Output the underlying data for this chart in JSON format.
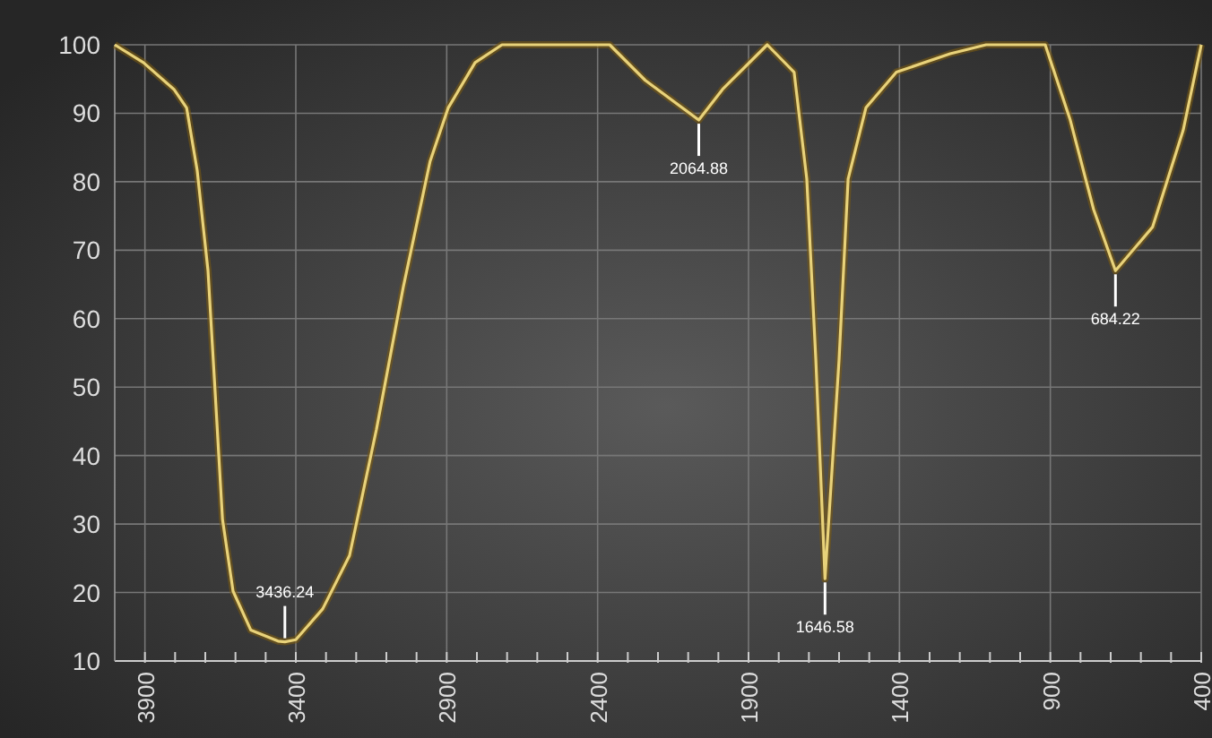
{
  "chart_data": {
    "type": "line",
    "x": [
      4000,
      3905,
      3804,
      3762,
      3727,
      3691,
      3667,
      3643,
      3608,
      3549,
      3459,
      3436.24,
      3400,
      3311,
      3222,
      3133,
      3044,
      2955,
      2895,
      2806,
      2717,
      2360,
      2242,
      2064.88,
      1986,
      1838,
      1749,
      1707,
      1677,
      1646.58,
      1600,
      1570,
      1511,
      1410,
      1232,
      1113,
      917,
      834,
      757,
      684.22,
      561,
      460,
      400
    ],
    "series": [
      {
        "color": "#e8d27a",
        "values": [
          100,
          97.4,
          93.5,
          90.8,
          81.7,
          67,
          49,
          30.7,
          20.2,
          14.5,
          12.9,
          12.8,
          13.1,
          17.6,
          25.4,
          43.8,
          64.6,
          83,
          90.8,
          97.4,
          100,
          100,
          94.8,
          89,
          93.5,
          100,
          96,
          80.4,
          54,
          22,
          54,
          80.4,
          90.8,
          96,
          98.7,
          100,
          100,
          89,
          76,
          67,
          73.4,
          87.5,
          100
        ]
      }
    ],
    "xlim": [
      4000,
      400
    ],
    "xticks": [
      {
        "value": 3900,
        "label": "3900"
      },
      {
        "value": 3800,
        "label": null
      },
      {
        "value": 3700,
        "label": null
      },
      {
        "value": 3600,
        "label": null
      },
      {
        "value": 3500,
        "label": null
      },
      {
        "value": 3400,
        "label": "3400"
      },
      {
        "value": 3300,
        "label": null
      },
      {
        "value": 3200,
        "label": null
      },
      {
        "value": 3100,
        "label": null
      },
      {
        "value": 3000,
        "label": null
      },
      {
        "value": 2900,
        "label": "2900"
      },
      {
        "value": 2800,
        "label": null
      },
      {
        "value": 2700,
        "label": null
      },
      {
        "value": 2600,
        "label": null
      },
      {
        "value": 2500,
        "label": null
      },
      {
        "value": 2400,
        "label": "2400"
      },
      {
        "value": 2300,
        "label": null
      },
      {
        "value": 2200,
        "label": null
      },
      {
        "value": 2100,
        "label": null
      },
      {
        "value": 2000,
        "label": null
      },
      {
        "value": 1900,
        "label": "1900"
      },
      {
        "value": 1800,
        "label": null
      },
      {
        "value": 1700,
        "label": null
      },
      {
        "value": 1600,
        "label": null
      },
      {
        "value": 1500,
        "label": null
      },
      {
        "value": 1400,
        "label": "1400"
      },
      {
        "value": 1300,
        "label": null
      },
      {
        "value": 1200,
        "label": null
      },
      {
        "value": 1100,
        "label": null
      },
      {
        "value": 1000,
        "label": null
      },
      {
        "value": 900,
        "label": "900"
      },
      {
        "value": 800,
        "label": null
      },
      {
        "value": 700,
        "label": null
      },
      {
        "value": 600,
        "label": null
      },
      {
        "value": 500,
        "label": null
      },
      {
        "value": 400,
        "label": "400"
      }
    ],
    "ylim": [
      10,
      100
    ],
    "yticks": [
      10,
      20,
      30,
      40,
      50,
      60,
      70,
      80,
      90,
      100
    ],
    "grid": true,
    "marker": "none",
    "annotations": [
      {
        "text": "3436.24",
        "x": 3436.24,
        "y": 12.8
      },
      {
        "text": "2064.88",
        "x": 2064.88,
        "y": 89
      },
      {
        "text": "1646.58",
        "x": 1646.58,
        "y": 22
      },
      {
        "text": "684.22",
        "x": 684.22,
        "y": 67
      }
    ]
  }
}
